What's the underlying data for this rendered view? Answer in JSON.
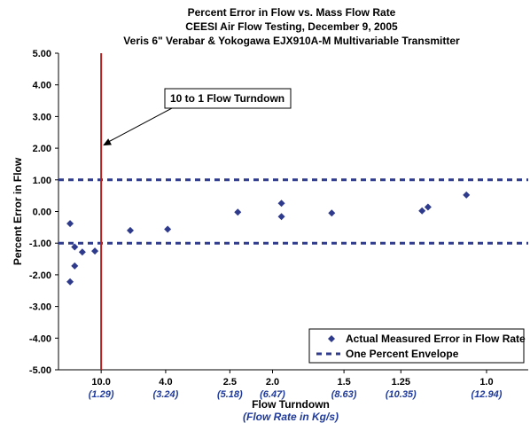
{
  "chart_data": {
    "type": "scatter",
    "title": "Percent Error in Flow vs. Mass Flow Rate",
    "subtitle1": "CEESI Air Flow Testing, December 9, 2005",
    "subtitle2": "Veris 6\" Verabar & Yokogawa EJX910A-M Multivariable Transmitter",
    "xlabel": "Flow Turndown",
    "xlabel2": "(Flow Rate in Kg/s)",
    "ylabel": "Percent Error in Flow",
    "xlim": [
      0,
      14.2
    ],
    "ylim": [
      -5,
      5
    ],
    "y_ticks": [
      "5.00",
      "4.00",
      "3.00",
      "2.00",
      "1.00",
      "0.00",
      "-1.00",
      "-2.00",
      "-3.00",
      "-4.00",
      "-5.00"
    ],
    "x_ticks": [
      {
        "x": 1.29,
        "top": "10.0",
        "bottom": "(1.29)"
      },
      {
        "x": 3.24,
        "top": "4.0",
        "bottom": "(3.24)"
      },
      {
        "x": 5.18,
        "top": "2.5",
        "bottom": "(5.18)"
      },
      {
        "x": 6.47,
        "top": "2.0",
        "bottom": "(6.47)"
      },
      {
        "x": 8.63,
        "top": "1.5",
        "bottom": "(8.63)"
      },
      {
        "x": 10.35,
        "top": "1.25",
        "bottom": "(10.35)"
      },
      {
        "x": 12.94,
        "top": "1.0",
        "bottom": "(12.94)"
      }
    ],
    "series": [
      {
        "name": "Actual Measured Error in Flow Rate",
        "marker": "diamond",
        "color": "#2e3a8c",
        "points": [
          [
            0.35,
            -0.38
          ],
          [
            0.35,
            -2.22
          ],
          [
            0.49,
            -1.12
          ],
          [
            0.49,
            -1.72
          ],
          [
            0.72,
            -1.28
          ],
          [
            1.1,
            -1.25
          ],
          [
            2.17,
            -0.6
          ],
          [
            3.3,
            -0.56
          ],
          [
            5.42,
            -0.02
          ],
          [
            6.74,
            0.26
          ],
          [
            6.74,
            -0.16
          ],
          [
            8.26,
            -0.05
          ],
          [
            10.99,
            0.02
          ],
          [
            11.17,
            0.14
          ],
          [
            12.33,
            0.52
          ]
        ]
      },
      {
        "name": "One Percent Envelope",
        "style": "dashed",
        "color": "#2e3a8c",
        "levels": [
          1.0,
          -1.0
        ]
      }
    ],
    "reference_line": {
      "x": 1.29,
      "color": "#b22222"
    },
    "annotation": {
      "text": "10 to 1 Flow Turndown",
      "target_x": 1.29,
      "target_y": 2.0
    },
    "legend_position": "bottom-right",
    "grid": false
  }
}
